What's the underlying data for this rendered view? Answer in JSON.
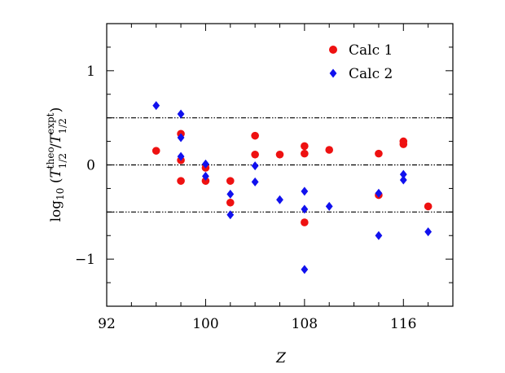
{
  "chart_data": {
    "type": "scatter",
    "xlabel": "Z",
    "ylabel": "log10 (T^theo_1/2 / T^expt_1/2)",
    "xlim": [
      92,
      120
    ],
    "ylim": [
      -1.5,
      1.5
    ],
    "x_ticks": [
      92,
      100,
      108,
      116
    ],
    "x_tick_labels": [
      "92",
      "100",
      "108",
      "116"
    ],
    "y_ticks": [
      -1,
      0,
      1
    ],
    "y_tick_labels": [
      "−1",
      "0",
      "1"
    ],
    "reference_lines": [
      0.5,
      0,
      -0.5
    ],
    "legend_position": "top-right",
    "colors": {
      "calc1": "#ee1111",
      "calc2": "#1111ee"
    },
    "series": [
      {
        "name": "Calc 1",
        "marker": "circle",
        "color": "#ee1111",
        "points": [
          [
            96,
            0.15
          ],
          [
            98,
            0.33
          ],
          [
            98,
            0.05
          ],
          [
            98,
            -0.17
          ],
          [
            100,
            -0.03
          ],
          [
            100,
            -0.17
          ],
          [
            102,
            -0.17
          ],
          [
            102,
            -0.4
          ],
          [
            104,
            0.31
          ],
          [
            104,
            0.11
          ],
          [
            106,
            0.11
          ],
          [
            108,
            0.2
          ],
          [
            108,
            0.12
          ],
          [
            108,
            -0.61
          ],
          [
            110,
            0.16
          ],
          [
            114,
            0.12
          ],
          [
            114,
            -0.32
          ],
          [
            116,
            0.25
          ],
          [
            116,
            0.22
          ],
          [
            118,
            -0.44
          ]
        ]
      },
      {
        "name": "Calc 2",
        "marker": "diamond",
        "color": "#1111ee",
        "points": [
          [
            96,
            0.63
          ],
          [
            98,
            0.54
          ],
          [
            98,
            0.29
          ],
          [
            98,
            0.09
          ],
          [
            100,
            0.01
          ],
          [
            100,
            -0.12
          ],
          [
            102,
            -0.31
          ],
          [
            102,
            -0.53
          ],
          [
            104,
            -0.01
          ],
          [
            104,
            -0.18
          ],
          [
            106,
            -0.37
          ],
          [
            108,
            -0.28
          ],
          [
            108,
            -0.47
          ],
          [
            108,
            -1.11
          ],
          [
            110,
            -0.44
          ],
          [
            114,
            -0.3
          ],
          [
            114,
            -0.75
          ],
          [
            116,
            -0.1
          ],
          [
            116,
            -0.16
          ],
          [
            118,
            -0.71
          ]
        ]
      }
    ]
  }
}
